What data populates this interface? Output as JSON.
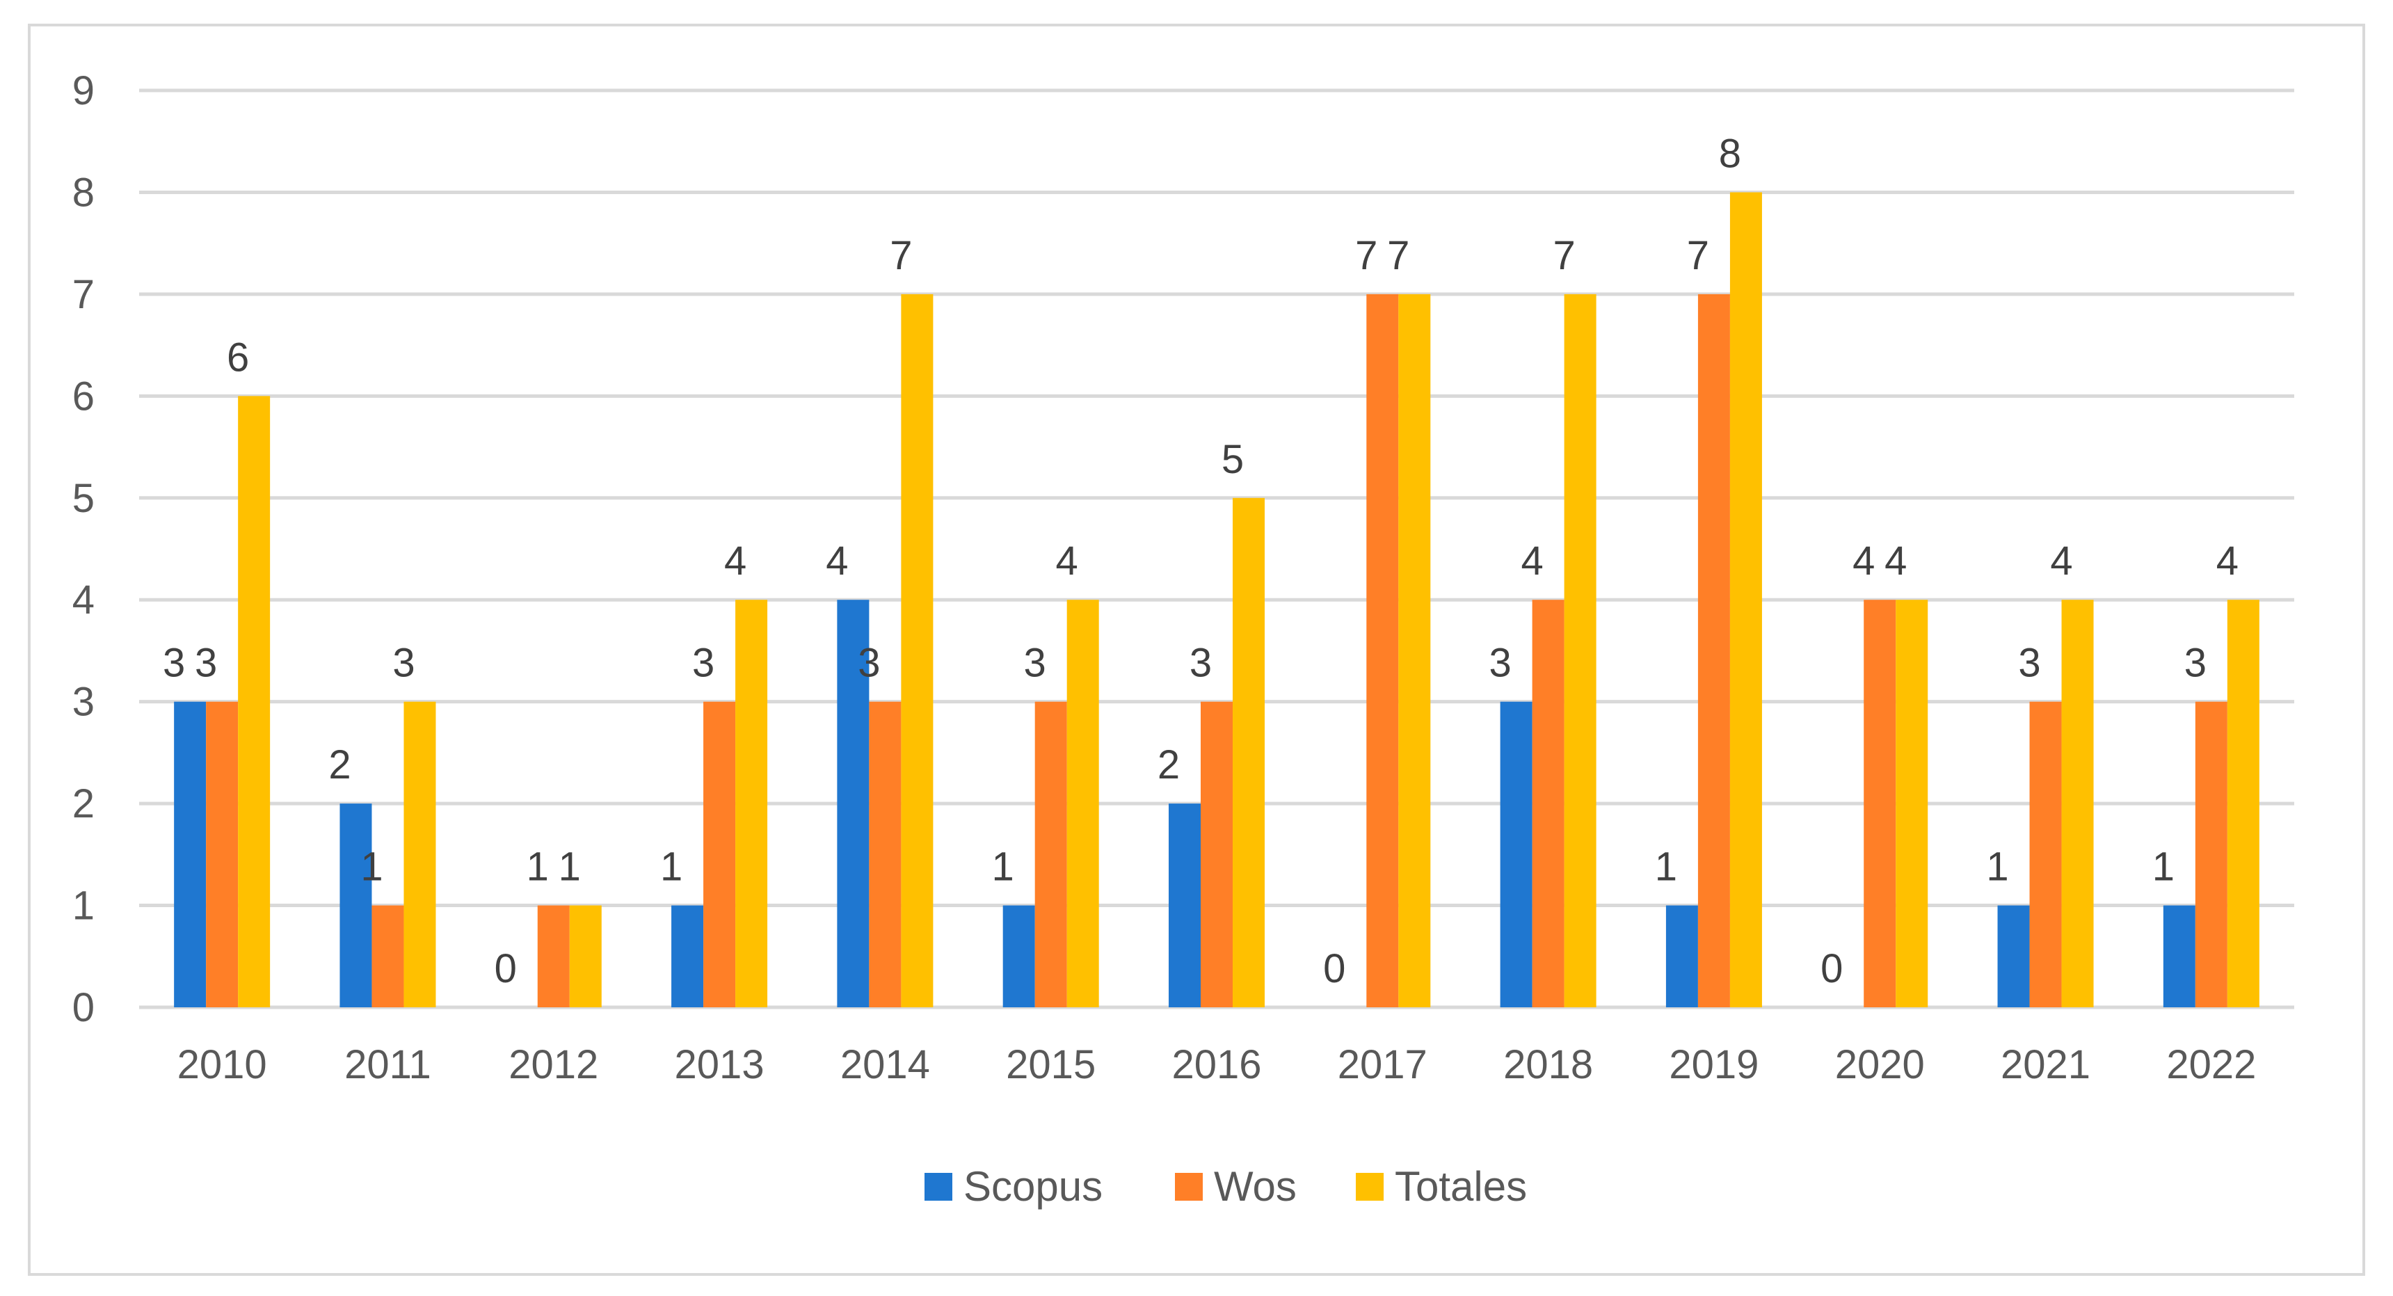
{
  "chart_data": {
    "type": "bar",
    "title": "",
    "xlabel": "",
    "ylabel": "",
    "ylim": [
      0,
      9
    ],
    "yticks": [
      0,
      1,
      2,
      3,
      4,
      5,
      6,
      7,
      8,
      9
    ],
    "grid": true,
    "legend_position": "bottom",
    "categories": [
      "2010",
      "2011",
      "2012",
      "2013",
      "2014",
      "2015",
      "2016",
      "2017",
      "2018",
      "2019",
      "2020",
      "2021",
      "2022"
    ],
    "series": [
      {
        "name": "Scopus",
        "color": "#1f77d0",
        "values": [
          3,
          2,
          0,
          1,
          4,
          1,
          2,
          0,
          3,
          1,
          0,
          1,
          1
        ]
      },
      {
        "name": "Wos",
        "color": "#ff7f27",
        "values": [
          3,
          1,
          1,
          3,
          3,
          3,
          3,
          7,
          4,
          7,
          4,
          3,
          3
        ]
      },
      {
        "name": "Totales",
        "color": "#ffc000",
        "values": [
          6,
          3,
          1,
          4,
          7,
          4,
          5,
          7,
          7,
          8,
          4,
          4,
          4
        ]
      }
    ]
  }
}
